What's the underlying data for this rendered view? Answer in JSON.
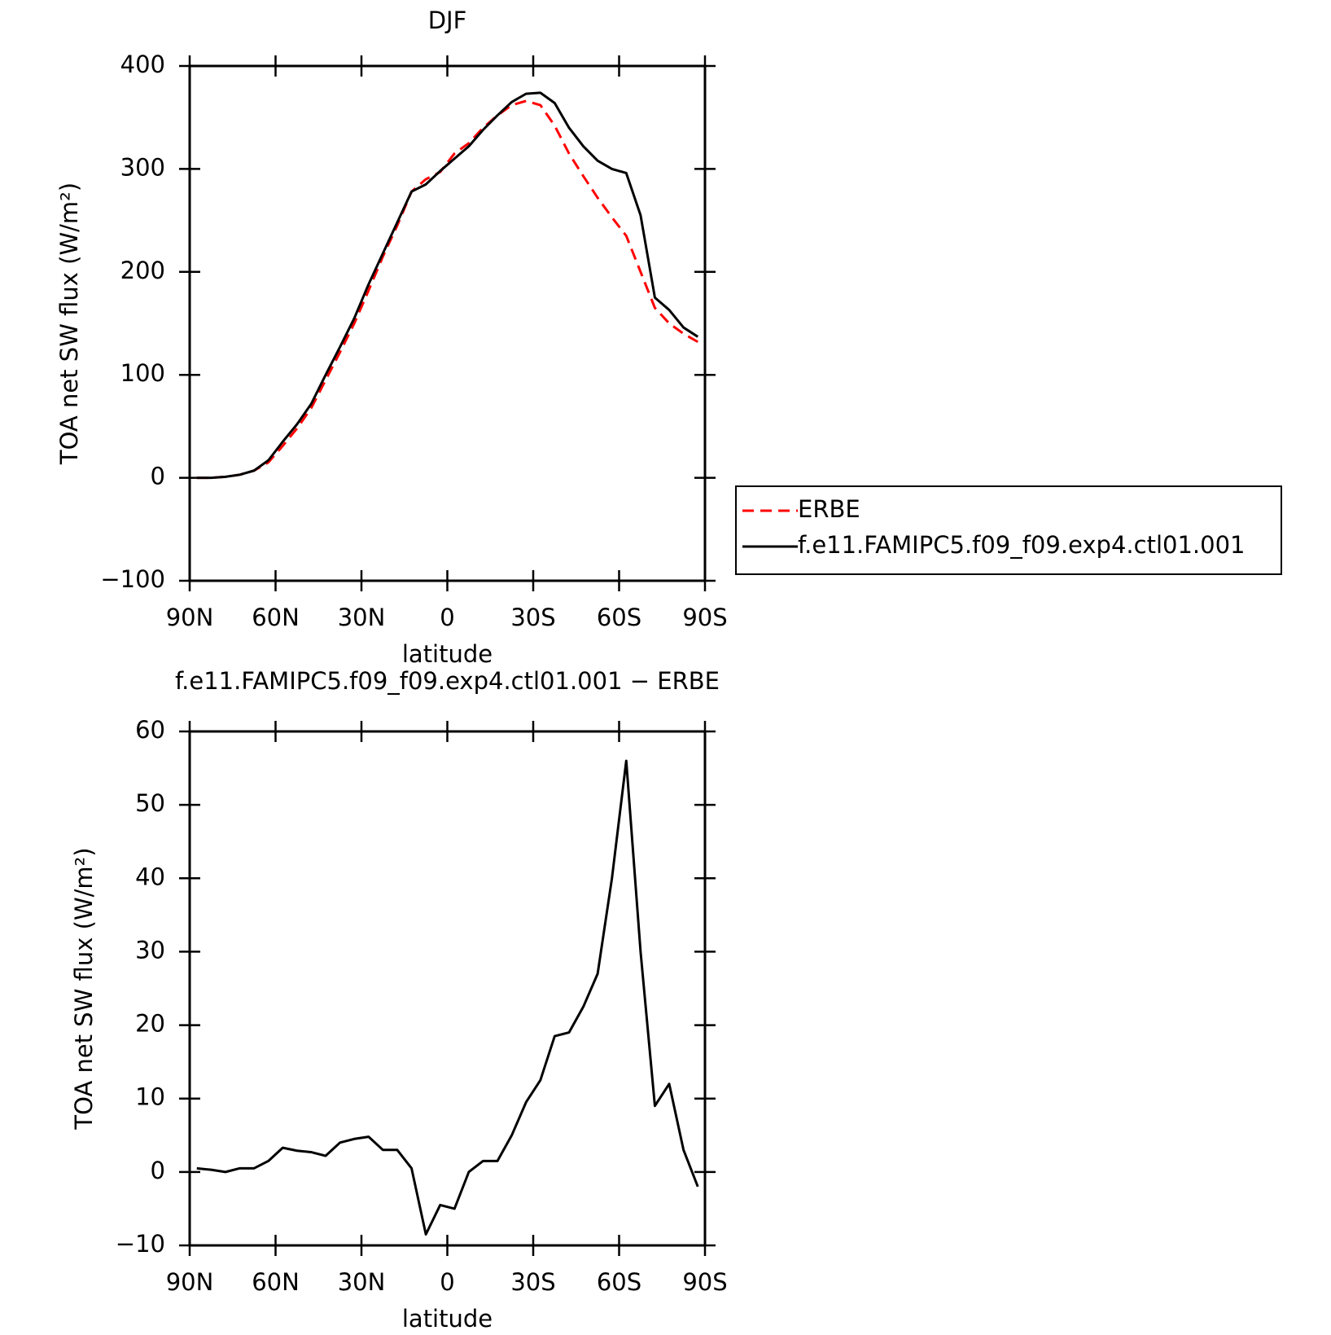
{
  "chart_data": [
    {
      "type": "line",
      "title": "DJF",
      "x_label": "latitude",
      "y_label": "TOA net SW flux (W/m²)",
      "x": [
        87.5,
        82.5,
        77.5,
        72.5,
        67.5,
        62.5,
        57.5,
        52.5,
        47.5,
        42.5,
        37.5,
        32.5,
        27.5,
        22.5,
        17.5,
        12.5,
        7.5,
        2.5,
        -2.5,
        -7.5,
        -12.5,
        -17.5,
        -22.5,
        -27.5,
        -32.5,
        -37.5,
        -42.5,
        -47.5,
        -52.5,
        -57.5,
        -62.5,
        -67.5,
        -72.5,
        -77.5,
        -82.5,
        -87.5
      ],
      "series": [
        {
          "name": "ERBE",
          "color": "#ff0000",
          "line_style": "dashed",
          "values": [
            0,
            0,
            1,
            3,
            7,
            15,
            31,
            48,
            68,
            95,
            122,
            150,
            182,
            215,
            245,
            278,
            290,
            297,
            315,
            325,
            340,
            352,
            362,
            366,
            362,
            342,
            315,
            293,
            272,
            253,
            235,
            200,
            165,
            150,
            140,
            132
          ]
        },
        {
          "name": "f.e11.FAMIPC5.f09_f09.exp4.ctl01.001",
          "color": "#000000",
          "line_style": "solid",
          "values": [
            0,
            0,
            1,
            3,
            7,
            17,
            35,
            52,
            72,
            100,
            127,
            155,
            188,
            218,
            248,
            278,
            285,
            298,
            310,
            322,
            338,
            352,
            365,
            373,
            374,
            364,
            340,
            322,
            308,
            300,
            296,
            255,
            175,
            163,
            146,
            137
          ]
        }
      ],
      "xlim": [
        90,
        -90
      ],
      "xticks": [
        {
          "value": 90,
          "label": "90N"
        },
        {
          "value": 60,
          "label": "60N"
        },
        {
          "value": 30,
          "label": "30N"
        },
        0,
        {
          "value": -30,
          "label": "30S"
        },
        {
          "value": -60,
          "label": "60S"
        },
        {
          "value": -90,
          "label": "90S"
        }
      ],
      "ylim": [
        -100,
        400
      ],
      "yticks": [
        {
          "value": -100,
          "label": "−100"
        },
        0,
        100,
        200,
        300,
        400
      ],
      "legend": "right"
    },
    {
      "type": "line",
      "title": "f.e11.FAMIPC5.f09_f09.exp4.ctl01.001 − ERBE",
      "x_label": "latitude",
      "y_label": "TOA net SW flux (W/m²)",
      "x": [
        87.5,
        82.5,
        77.5,
        72.5,
        67.5,
        62.5,
        57.5,
        52.5,
        47.5,
        42.5,
        37.5,
        32.5,
        27.5,
        22.5,
        17.5,
        12.5,
        7.5,
        2.5,
        -2.5,
        -7.5,
        -12.5,
        -17.5,
        -22.5,
        -27.5,
        -32.5,
        -37.5,
        -42.5,
        -47.5,
        -52.5,
        -57.5,
        -62.5,
        -67.5,
        -72.5,
        -77.5,
        -82.5,
        -87.5
      ],
      "values": [
        0.5,
        0.3,
        0,
        0.5,
        0.5,
        1.5,
        3.3,
        2.9,
        2.7,
        2.2,
        4,
        4.5,
        4.8,
        3,
        3,
        0.5,
        -8.5,
        -4.5,
        -5,
        0,
        1.5,
        1.5,
        5,
        9.5,
        12.5,
        18.5,
        19,
        22.5,
        27,
        40,
        56,
        30,
        9,
        12,
        3,
        -2
      ],
      "color": "#000000",
      "xlim": [
        90,
        -90
      ],
      "xticks": [
        {
          "value": 90,
          "label": "90N"
        },
        {
          "value": 60,
          "label": "60N"
        },
        {
          "value": 30,
          "label": "30N"
        },
        0,
        {
          "value": -30,
          "label": "30S"
        },
        {
          "value": -60,
          "label": "60S"
        },
        {
          "value": -90,
          "label": "90S"
        }
      ],
      "ylim": [
        -10,
        60
      ],
      "yticks": [
        {
          "value": -10,
          "label": "−10"
        },
        0,
        10,
        20,
        30,
        40,
        50,
        60
      ]
    }
  ]
}
